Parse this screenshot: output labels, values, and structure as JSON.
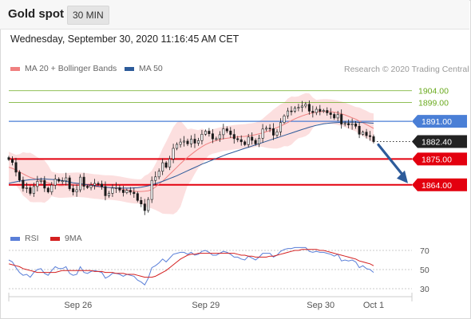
{
  "header": {
    "title": "Gold spot",
    "timeframe": "30 MIN"
  },
  "timestamp": "Wednesday, September 30, 2020 11:16:45 AM CET",
  "legend": {
    "items": [
      {
        "label": "MA 20 + Bollinger Bands",
        "color": "#f08080"
      },
      {
        "label": "MA 50",
        "color": "#2d5b9a"
      }
    ],
    "credit": "Research © 2020 Trading Central"
  },
  "colors": {
    "resistance": "#6aaa1e",
    "pivot": "#4a7fd6",
    "support": "#e3000f",
    "last": "#222222",
    "band": "#fbd4d4",
    "candle": "#1a1a1a",
    "arrow": "#2d5b9a",
    "rsi": "#5a7fd8",
    "rsi_ma": "#d42020"
  },
  "chart_data": [
    {
      "type": "candlestick",
      "ylim": [
        1847,
        1910
      ],
      "x_ticks": [
        "Sep 26",
        "Sep 29",
        "Sep 30",
        "Oct 1"
      ],
      "price_levels": [
        {
          "label": "1904.00",
          "value": 1904.0,
          "kind": "resistance"
        },
        {
          "label": "1899.00",
          "value": 1899.0,
          "kind": "resistance"
        },
        {
          "label": "1891.00",
          "value": 1891.0,
          "kind": "pivot"
        },
        {
          "label": "1882.40",
          "value": 1882.4,
          "kind": "last"
        },
        {
          "label": "1875.00",
          "value": 1875.0,
          "kind": "support"
        },
        {
          "label": "1864.00",
          "value": 1864.0,
          "kind": "support"
        }
      ],
      "close": [
        1874.8,
        1873.5,
        1869.4,
        1866.0,
        1862.5,
        1862.8,
        1860.4,
        1863.3,
        1865.5,
        1865.9,
        1862.6,
        1861.0,
        1863.9,
        1866.4,
        1865.6,
        1865.7,
        1867.0,
        1862.4,
        1861.0,
        1861.9,
        1867.3,
        1863.4,
        1862.9,
        1863.8,
        1864.6,
        1864.3,
        1863.3,
        1859.4,
        1860.4,
        1862.6,
        1862.8,
        1861.8,
        1860.7,
        1861.7,
        1860.9,
        1860.3,
        1857.4,
        1855.9,
        1853.1,
        1857.8,
        1865.9,
        1867.4,
        1869.8,
        1873.4,
        1871.5,
        1875.0,
        1879.5,
        1881.2,
        1882.2,
        1882.6,
        1881.4,
        1883.4,
        1881.7,
        1882.8,
        1885.5,
        1886.8,
        1885.7,
        1883.5,
        1883.6,
        1885.3,
        1887.8,
        1886.9,
        1885.4,
        1883.6,
        1883.2,
        1882.3,
        1881.1,
        1884.3,
        1882.9,
        1881.4,
        1883.8,
        1887.7,
        1888.1,
        1887.9,
        1885.1,
        1886.5,
        1890.5,
        1893.3,
        1895.4,
        1895.3,
        1896.6,
        1896.9,
        1897.5,
        1898.2,
        1895.3,
        1894.7,
        1896.1,
        1895.2,
        1895.6,
        1894.6,
        1893.9,
        1892.4,
        1893.9,
        1889.8,
        1890.1,
        1889.5,
        1889.9,
        1888.9,
        1885.5,
        1886.4,
        1884.9,
        1884.5,
        1882.4
      ],
      "ma20": [
        1871.5,
        1871.0,
        1870.3,
        1869.5,
        1868.7,
        1867.9,
        1867.2,
        1866.7,
        1866.2,
        1865.8,
        1865.4,
        1864.9,
        1864.4,
        1864.0,
        1863.7,
        1863.7,
        1863.8,
        1863.9,
        1864.0,
        1864.1,
        1864.0,
        1863.9,
        1863.7,
        1863.5,
        1863.3,
        1863.2,
        1863.0,
        1862.9,
        1862.9,
        1862.8,
        1862.6,
        1862.4,
        1862.1,
        1861.8,
        1861.5,
        1861.3,
        1861.2,
        1861.2,
        1861.3,
        1861.5,
        1862.0,
        1863.1,
        1864.3,
        1865.6,
        1867.0,
        1868.5,
        1870.0,
        1871.5,
        1873.0,
        1874.4,
        1875.7,
        1876.9,
        1878.1,
        1879.2,
        1880.2,
        1881.1,
        1881.8,
        1882.4,
        1882.8,
        1883.2,
        1883.6,
        1883.8,
        1884.0,
        1884.2,
        1884.4,
        1884.5,
        1884.6,
        1884.8,
        1885.0,
        1885.3,
        1885.7,
        1886.1,
        1886.6,
        1887.1,
        1887.7,
        1888.3,
        1889.0,
        1889.7,
        1890.5,
        1891.3,
        1892.0,
        1892.7,
        1893.3,
        1893.8,
        1894.3,
        1894.6,
        1894.9,
        1895.1,
        1895.2,
        1895.2,
        1895.1,
        1894.9,
        1894.6,
        1894.2,
        1893.7,
        1893.1,
        1892.5,
        1891.9,
        1891.1,
        1890.4,
        1889.6,
        1888.8,
        1888.0
      ],
      "ma50": [
        1864.6,
        1865.0,
        1865.3,
        1865.6,
        1865.8,
        1866.0,
        1866.2,
        1866.3,
        1866.4,
        1866.5,
        1866.5,
        1866.4,
        1866.3,
        1866.2,
        1866.0,
        1865.8,
        1865.5,
        1865.2,
        1864.9,
        1864.7,
        1864.5,
        1864.2,
        1864.0,
        1863.8,
        1863.6,
        1863.4,
        1863.2,
        1863.0,
        1862.9,
        1862.8,
        1862.7,
        1862.6,
        1862.6,
        1862.6,
        1862.6,
        1862.7,
        1862.8,
        1863.0,
        1863.3,
        1863.6,
        1864.0,
        1864.5,
        1865.0,
        1865.5,
        1866.1,
        1866.7,
        1867.3,
        1867.9,
        1868.6,
        1869.3,
        1870.0,
        1870.7,
        1871.4,
        1872.1,
        1872.8,
        1873.4,
        1874.0,
        1874.6,
        1875.2,
        1875.8,
        1876.4,
        1877.0,
        1877.5,
        1878.0,
        1878.5,
        1879.0,
        1879.5,
        1880.0,
        1880.5,
        1881.0,
        1881.5,
        1882.0,
        1882.5,
        1883.0,
        1883.5,
        1884.0,
        1884.5,
        1885.0,
        1885.5,
        1886.0,
        1886.5,
        1887.0,
        1887.5,
        1888.0,
        1888.5,
        1888.9,
        1889.3,
        1889.6,
        1889.9,
        1890.1,
        1890.3,
        1890.4,
        1890.5,
        1890.6,
        1890.6,
        1890.6,
        1890.6,
        1890.6,
        1890.5,
        1890.5,
        1890.4,
        1890.3,
        1890.2
      ],
      "forecast_arrow": {
        "from": 1882.4,
        "to": 1864.0
      }
    },
    {
      "type": "line",
      "series": [
        {
          "name": "RSI",
          "values": [
            60,
            58,
            52,
            47,
            44,
            45,
            42,
            47,
            50,
            51,
            46,
            44,
            49,
            53,
            51,
            51,
            53,
            46,
            44,
            45,
            53,
            47,
            46,
            48,
            49,
            48,
            47,
            41,
            43,
            46,
            46,
            45,
            43,
            45,
            44,
            43,
            39,
            37,
            34,
            41,
            52,
            54,
            57,
            61,
            58,
            62,
            66,
            67,
            68,
            68,
            66,
            68,
            65,
            66,
            69,
            70,
            68,
            65,
            65,
            67,
            69,
            68,
            66,
            63,
            63,
            61,
            60,
            64,
            62,
            60,
            63,
            67,
            67,
            67,
            63,
            65,
            69,
            71,
            72,
            72,
            73,
            73,
            73,
            73,
            69,
            68,
            69,
            68,
            68,
            67,
            66,
            64,
            66,
            59,
            60,
            59,
            60,
            58,
            52,
            54,
            51,
            50,
            47
          ]
        },
        {
          "name": "9MA",
          "values": [
            56,
            55,
            54,
            53,
            51,
            50,
            49,
            48,
            47,
            47,
            47,
            47,
            47,
            47,
            48,
            49,
            49,
            49,
            49,
            49,
            49,
            49,
            49,
            49,
            48,
            48,
            48,
            47,
            47,
            47,
            46,
            46,
            46,
            45,
            45,
            45,
            44,
            43,
            42,
            42,
            42,
            43,
            45,
            47,
            49,
            52,
            55,
            58,
            61,
            63,
            65,
            66,
            66,
            67,
            67,
            67,
            67,
            67,
            67,
            67,
            67,
            67,
            67,
            67,
            66,
            65,
            65,
            64,
            64,
            63,
            63,
            63,
            63,
            64,
            64,
            65,
            66,
            67,
            68,
            69,
            70,
            70,
            71,
            71,
            71,
            71,
            71,
            70,
            70,
            69,
            68,
            67,
            66,
            65,
            64,
            63,
            62,
            61,
            59,
            58,
            57,
            56,
            54
          ]
        }
      ],
      "ylim": [
        25,
        75
      ],
      "y_ticks": [
        "70",
        "50",
        "30"
      ],
      "y_tick_values": [
        70,
        50,
        30
      ]
    }
  ]
}
